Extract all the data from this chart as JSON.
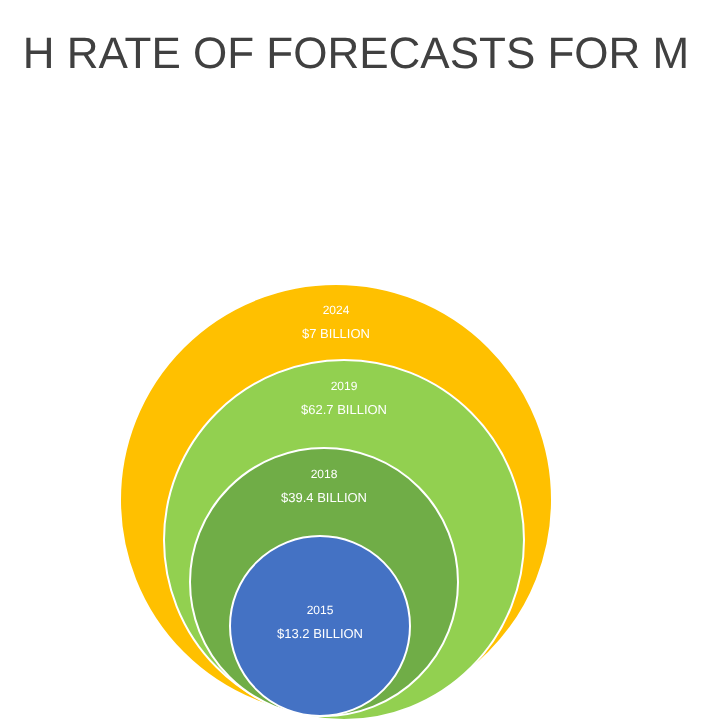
{
  "chart_data": {
    "type": "other",
    "title": "H RATE OF FORECASTS FOR M",
    "categories": [
      "2024",
      "2019",
      "2018",
      "2015"
    ],
    "values": [
      7,
      62.7,
      39.4,
      13.2
    ],
    "value_labels": [
      "$7 BILLION",
      "$62.7 BILLION",
      "$39.4 BILLION",
      "$13.2 BILLION"
    ],
    "colors": [
      "#ffc000",
      "#92d050",
      "#70ad47",
      "#4472c4"
    ]
  }
}
